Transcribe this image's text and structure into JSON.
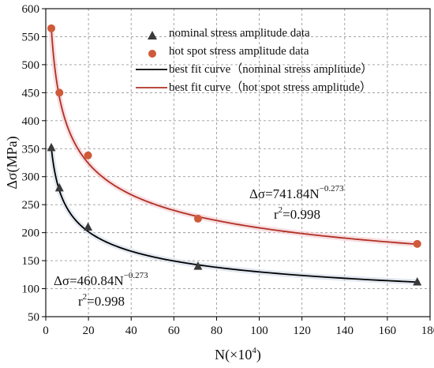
{
  "chart_data": {
    "type": "scatter",
    "xlabel": "N(×10",
    "xlabel_sup": "4",
    "xlabel_close": ")",
    "ylabel": "Δσ(MPa)",
    "xlim": [
      0,
      180
    ],
    "ylim": [
      50,
      600
    ],
    "x_ticks": [
      0,
      20,
      40,
      60,
      80,
      100,
      120,
      140,
      160,
      180
    ],
    "y_ticks": [
      50,
      100,
      150,
      200,
      250,
      300,
      350,
      400,
      450,
      500,
      550,
      600
    ],
    "grid": true,
    "legend_position": "top-right",
    "series": [
      {
        "name": "nominal stress amplitude data",
        "kind": "points",
        "marker": "triangle",
        "color": "#3a3a3a",
        "x": [
          2.6,
          6.4,
          19.8,
          71.3,
          174.0
        ],
        "y": [
          352,
          280,
          210,
          140,
          112
        ]
      },
      {
        "name": "hot spot stress amplitude data",
        "kind": "points",
        "marker": "circle",
        "color": "#cf5a3a",
        "x": [
          2.6,
          6.4,
          19.8,
          71.3,
          174.0
        ],
        "y": [
          565,
          450,
          338,
          225,
          180
        ]
      },
      {
        "name": "best fit curve（nominal stress amplitude）",
        "kind": "curve",
        "color": "#000000",
        "coefficient": 460.84,
        "exponent": -0.273,
        "x_range": [
          2.6,
          174.0
        ]
      },
      {
        "name": "best fit curve（hot spot stress amplitude）",
        "kind": "curve",
        "color": "#b03024",
        "coefficient": 741.84,
        "exponent": -0.273,
        "x_range": [
          2.6,
          174.0
        ]
      }
    ],
    "annotations": [
      {
        "id": "hot",
        "base": "Δσ=741.84N",
        "exp": "−0.273",
        "r2_base": "r",
        "r2_exp": "2",
        "r2_value": "=0.998"
      },
      {
        "id": "nom",
        "base": "Δσ=460.84N",
        "exp": "−0.273",
        "r2_base": "r",
        "r2_exp": "2",
        "r2_value": "=0.998"
      }
    ]
  }
}
